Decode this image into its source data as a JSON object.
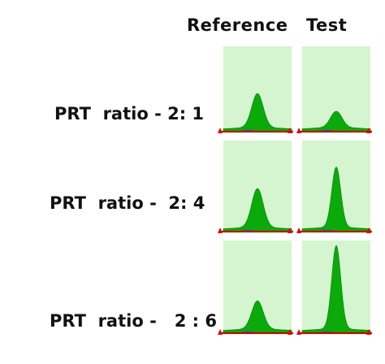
{
  "headers": {
    "reference": "Reference",
    "test": "Test"
  },
  "rows": [
    {
      "label": "PRT  ratio - 2: 1",
      "reference_peak": 0.42,
      "test_peak": 0.2
    },
    {
      "label": "PRT  ratio -  2: 4",
      "reference_peak": 0.45,
      "test_peak": 0.7
    },
    {
      "label": "PRT  ratio -   2 : 6",
      "reference_peak": 0.32,
      "test_peak": 0.95
    }
  ],
  "colors": {
    "panel_background": "#d4f5cf",
    "peak_fill": "#0aaa0a",
    "baseline": "#cc0000",
    "marker": "#e60000",
    "noise": "#3c3cc8"
  }
}
